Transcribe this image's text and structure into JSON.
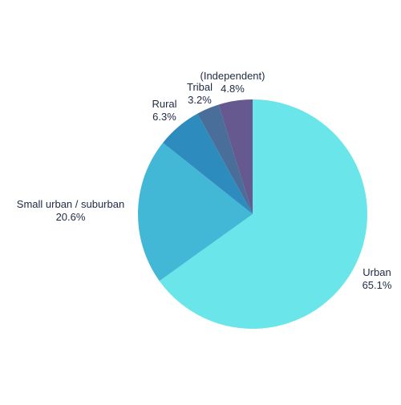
{
  "chart_data": {
    "type": "pie",
    "title": "",
    "slices": [
      {
        "label": "Urban",
        "value": 65.1,
        "display": "65.1%",
        "color": "#6ae6ea"
      },
      {
        "label": "Small urban / suburban",
        "value": 20.6,
        "display": "20.6%",
        "color": "#42b8d6"
      },
      {
        "label": "Rural",
        "value": 6.3,
        "display": "6.3%",
        "color": "#2e8bbd"
      },
      {
        "label": "Tribal",
        "value": 3.2,
        "display": "3.2%",
        "color": "#496e99"
      },
      {
        "label": "(Independent)",
        "value": 4.8,
        "display": "4.8%",
        "color": "#66598f"
      }
    ]
  }
}
